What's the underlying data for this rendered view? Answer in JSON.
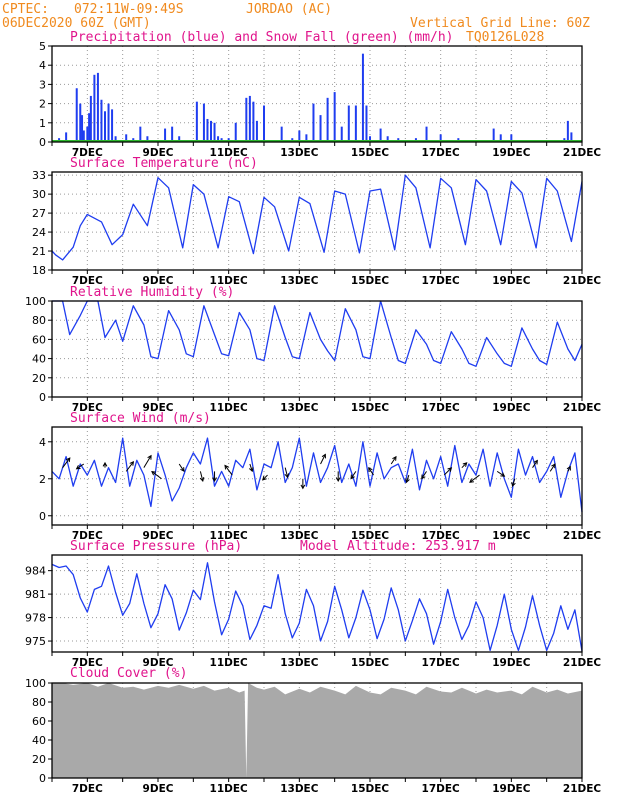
{
  "header": {
    "source_label": "CPTEC:",
    "station_coords": "072:11W-09:49S",
    "station_name": "JORDAO (AC)",
    "run_time": "06DEC2020 60Z (GMT)",
    "grid_note": "Vertical Grid Line: 60Z",
    "model_code": "TQ0126L028"
  },
  "colors": {
    "header": "#f08a1e",
    "title": "#e0148c",
    "series": "#1f3df0",
    "snow": "#2eb82e",
    "cloud": "#a9a9a9",
    "grid": "#9a9a9a"
  },
  "x_axis": {
    "start_day": 6,
    "end_day": 21,
    "tick_labels": [
      "7DEC",
      "9DEC",
      "11DEC",
      "13DEC",
      "15DEC",
      "17DEC",
      "19DEC",
      "21DEC"
    ]
  },
  "chart_data": [
    {
      "id": "precip",
      "type": "bar",
      "title": "Precipitation (blue) and Snow Fall (green) (mm/h)",
      "yticks": [
        0,
        1,
        2,
        3,
        4,
        5
      ],
      "ylim": [
        0,
        5
      ],
      "series": [
        {
          "name": "Precipitation",
          "x": [
            6.2,
            6.4,
            6.7,
            6.8,
            6.85,
            6.9,
            7.0,
            7.05,
            7.1,
            7.2,
            7.3,
            7.4,
            7.5,
            7.6,
            7.7,
            7.8,
            8.1,
            8.3,
            8.5,
            8.7,
            9.0,
            9.2,
            9.4,
            9.6,
            10.0,
            10.1,
            10.3,
            10.4,
            10.5,
            10.6,
            10.7,
            10.8,
            11.0,
            11.2,
            11.5,
            11.6,
            11.7,
            11.8,
            12.0,
            12.5,
            12.8,
            13.0,
            13.2,
            13.4,
            13.6,
            13.8,
            14.0,
            14.2,
            14.4,
            14.6,
            14.8,
            14.9,
            15.0,
            15.3,
            15.5,
            15.8,
            16.3,
            16.6,
            17.0,
            17.5,
            18.5,
            18.7,
            19.0,
            20.5,
            20.6,
            20.7
          ],
          "values": [
            0.2,
            0.5,
            2.8,
            2.0,
            1.4,
            0.6,
            0.8,
            1.5,
            2.4,
            3.5,
            3.6,
            2.2,
            1.6,
            2.0,
            1.7,
            0.3,
            0.4,
            0.2,
            0.8,
            0.3,
            0.1,
            0.7,
            0.8,
            0.3,
            0.1,
            2.1,
            2.0,
            1.2,
            1.1,
            1.0,
            0.3,
            0.2,
            0.2,
            1.0,
            2.3,
            2.4,
            2.1,
            1.1,
            1.9,
            0.8,
            0.2,
            0.6,
            0.4,
            2.0,
            1.4,
            2.3,
            2.6,
            0.8,
            1.9,
            1.9,
            4.6,
            1.9,
            0.3,
            0.7,
            0.3,
            0.2,
            0.2,
            0.8,
            0.4,
            0.2,
            0.7,
            0.4,
            0.4,
            0.2,
            1.1,
            0.5
          ]
        },
        {
          "name": "Snow Fall",
          "x": [
            6,
            21
          ],
          "values": [
            0,
            0
          ]
        }
      ]
    },
    {
      "id": "temp",
      "type": "line",
      "title": "Surface Temperature (nC)",
      "yticks": [
        18,
        21,
        24,
        27,
        30,
        33
      ],
      "ylim": [
        18,
        33.5
      ],
      "series": [
        {
          "name": "Temperature",
          "x": [
            6.0,
            6.1,
            6.3,
            6.6,
            6.8,
            7.0,
            7.4,
            7.7,
            8.0,
            8.3,
            8.7,
            9.0,
            9.3,
            9.7,
            10.0,
            10.3,
            10.7,
            11.0,
            11.3,
            11.7,
            12.0,
            12.3,
            12.7,
            13.0,
            13.3,
            13.7,
            14.0,
            14.3,
            14.7,
            15.0,
            15.3,
            15.7,
            16.0,
            16.3,
            16.7,
            17.0,
            17.3,
            17.7,
            18.0,
            18.3,
            18.7,
            19.0,
            19.3,
            19.7,
            20.0,
            20.3,
            20.7,
            21.0
          ],
          "values": [
            21.0,
            20.4,
            19.6,
            21.6,
            25.0,
            26.8,
            25.6,
            22.0,
            23.6,
            28.4,
            25.0,
            32.6,
            31.0,
            21.5,
            31.5,
            30.0,
            21.5,
            29.6,
            28.8,
            20.6,
            29.5,
            28.0,
            21.0,
            29.5,
            28.5,
            20.8,
            30.5,
            30.0,
            20.7,
            30.5,
            30.8,
            21.2,
            33.0,
            31.0,
            21.5,
            32.5,
            31.0,
            22.0,
            32.3,
            30.5,
            22.0,
            32.0,
            30.2,
            21.5,
            32.5,
            30.5,
            22.5,
            32.0
          ]
        }
      ]
    },
    {
      "id": "rh",
      "type": "line",
      "title": "Relative Humidity (%)",
      "yticks": [
        0,
        20,
        40,
        60,
        80,
        100
      ],
      "ylim": [
        0,
        100
      ],
      "series": [
        {
          "name": "Relative Humidity",
          "x": [
            6.0,
            6.3,
            6.5,
            6.8,
            7.0,
            7.3,
            7.5,
            7.8,
            8.0,
            8.3,
            8.6,
            8.8,
            9.0,
            9.3,
            9.6,
            9.8,
            10.0,
            10.3,
            10.6,
            10.8,
            11.0,
            11.3,
            11.6,
            11.8,
            12.0,
            12.3,
            12.6,
            12.8,
            13.0,
            13.3,
            13.6,
            13.8,
            14.0,
            14.3,
            14.6,
            14.8,
            15.0,
            15.3,
            15.6,
            15.8,
            16.0,
            16.3,
            16.6,
            16.8,
            17.0,
            17.3,
            17.6,
            17.8,
            18.0,
            18.3,
            18.6,
            18.8,
            19.0,
            19.3,
            19.6,
            19.8,
            20.0,
            20.3,
            20.6,
            20.8,
            21.0
          ],
          "values": [
            100,
            100,
            65,
            85,
            100,
            100,
            62,
            80,
            58,
            95,
            75,
            42,
            40,
            90,
            70,
            45,
            42,
            95,
            65,
            45,
            43,
            88,
            70,
            40,
            38,
            95,
            62,
            42,
            40,
            88,
            60,
            48,
            38,
            92,
            70,
            42,
            40,
            100,
            62,
            38,
            35,
            70,
            55,
            38,
            35,
            68,
            50,
            35,
            32,
            62,
            45,
            35,
            32,
            72,
            50,
            38,
            34,
            78,
            50,
            38,
            55
          ]
        }
      ]
    },
    {
      "id": "wind",
      "type": "line",
      "title": "Surface Wind (m/s)",
      "yticks": [
        0,
        2,
        4
      ],
      "ylim": [
        -0.5,
        4.8
      ],
      "series": [
        {
          "name": "Wind Speed",
          "x": [
            6.0,
            6.2,
            6.4,
            6.6,
            6.8,
            7.0,
            7.2,
            7.4,
            7.6,
            7.8,
            8.0,
            8.2,
            8.4,
            8.6,
            8.8,
            9.0,
            9.2,
            9.4,
            9.6,
            9.8,
            10.0,
            10.2,
            10.4,
            10.6,
            10.8,
            11.0,
            11.2,
            11.4,
            11.6,
            11.8,
            12.0,
            12.2,
            12.4,
            12.6,
            12.8,
            13.0,
            13.2,
            13.4,
            13.6,
            13.8,
            14.0,
            14.2,
            14.4,
            14.6,
            14.8,
            15.0,
            15.2,
            15.4,
            15.6,
            15.8,
            16.0,
            16.2,
            16.4,
            16.6,
            16.8,
            17.0,
            17.2,
            17.4,
            17.6,
            17.8,
            18.0,
            18.2,
            18.4,
            18.6,
            18.8,
            19.0,
            19.2,
            19.4,
            19.6,
            19.8,
            20.0,
            20.2,
            20.4,
            20.6,
            20.8,
            21.0
          ],
          "values": [
            2.4,
            2.0,
            3.2,
            1.6,
            2.8,
            2.2,
            3.0,
            1.6,
            2.6,
            1.8,
            4.2,
            1.6,
            3.0,
            2.2,
            0.5,
            3.4,
            2.2,
            0.8,
            1.5,
            2.6,
            3.4,
            2.8,
            4.2,
            1.6,
            2.4,
            1.6,
            3.0,
            2.6,
            3.6,
            1.4,
            2.8,
            2.6,
            4.0,
            1.8,
            2.6,
            4.2,
            1.6,
            3.4,
            1.8,
            2.6,
            3.8,
            1.8,
            2.8,
            1.6,
            4.0,
            1.6,
            3.4,
            2.0,
            2.6,
            2.8,
            1.8,
            3.6,
            1.4,
            3.0,
            2.0,
            3.2,
            1.6,
            3.8,
            1.8,
            2.8,
            2.2,
            3.6,
            1.6,
            3.4,
            2.0,
            1.0,
            3.6,
            2.2,
            3.2,
            1.8,
            2.4,
            3.2,
            1.0,
            2.4,
            3.4,
            0.2
          ]
        }
      ],
      "arrows": {
        "x": [
          6.3,
          6.9,
          7.5,
          8.1,
          8.6,
          9.1,
          9.6,
          10.2,
          10.6,
          11.1,
          11.6,
          12.1,
          12.6,
          13.1,
          13.6,
          14.1,
          14.6,
          15.1,
          15.6,
          16.1,
          16.6,
          17.1,
          17.6,
          18.1,
          18.6,
          19.1,
          19.6,
          20.1,
          20.6
        ],
        "y": [
          2.6,
          2.8,
          2.6,
          2.4,
          2.6,
          2.0,
          2.8,
          2.4,
          2.4,
          2.2,
          2.8,
          2.2,
          2.6,
          2.0,
          2.8,
          2.4,
          2.4,
          2.2,
          2.8,
          2.2,
          2.4,
          2.2,
          2.6,
          2.2,
          2.4,
          2.0,
          2.6,
          2.4,
          2.4
        ],
        "u": [
          0.6,
          -0.6,
          0.0,
          0.6,
          0.6,
          -0.8,
          0.4,
          0.2,
          0.0,
          -0.6,
          0.2,
          -0.4,
          0.2,
          0.0,
          0.4,
          0.0,
          -0.4,
          -0.4,
          0.4,
          -0.2,
          -0.4,
          0.6,
          0.4,
          -0.8,
          0.6,
          -0.2,
          0.4,
          0.4,
          0.2
        ],
        "v": [
          0.8,
          -0.4,
          0.4,
          0.8,
          1.0,
          0.6,
          -0.6,
          -0.8,
          -0.8,
          0.8,
          -0.6,
          -0.4,
          -0.8,
          -0.8,
          0.8,
          -0.8,
          -0.6,
          0.6,
          0.6,
          -0.6,
          -0.6,
          0.6,
          0.4,
          -0.6,
          -0.4,
          -0.6,
          0.6,
          0.6,
          0.4
        ]
      }
    },
    {
      "id": "pressure",
      "type": "line",
      "title": "Surface Pressure (hPa)",
      "annotation": "Model Altitude: 253.917 m",
      "yticks": [
        975,
        978,
        981,
        984
      ],
      "ylim": [
        973.6,
        986
      ],
      "series": [
        {
          "name": "Surface Pressure",
          "x": [
            6.0,
            6.2,
            6.4,
            6.6,
            6.8,
            7.0,
            7.2,
            7.4,
            7.6,
            7.8,
            8.0,
            8.2,
            8.4,
            8.6,
            8.8,
            9.0,
            9.2,
            9.4,
            9.6,
            9.8,
            10.0,
            10.2,
            10.4,
            10.6,
            10.8,
            11.0,
            11.2,
            11.4,
            11.6,
            11.8,
            12.0,
            12.2,
            12.4,
            12.6,
            12.8,
            13.0,
            13.2,
            13.4,
            13.6,
            13.8,
            14.0,
            14.2,
            14.4,
            14.6,
            14.8,
            15.0,
            15.2,
            15.4,
            15.6,
            15.8,
            16.0,
            16.2,
            16.4,
            16.6,
            16.8,
            17.0,
            17.2,
            17.4,
            17.6,
            17.8,
            18.0,
            18.2,
            18.4,
            18.6,
            18.8,
            19.0,
            19.2,
            19.4,
            19.6,
            19.8,
            20.0,
            20.2,
            20.4,
            20.6,
            20.8,
            21.0
          ],
          "values": [
            984.8,
            984.4,
            984.6,
            983.5,
            980.5,
            978.7,
            981.6,
            982.0,
            984.6,
            981.2,
            978.3,
            979.8,
            983.6,
            979.8,
            976.7,
            978.5,
            982.2,
            980.4,
            976.4,
            978.6,
            981.5,
            980.3,
            985.0,
            980.0,
            975.8,
            977.8,
            981.4,
            979.5,
            975.2,
            977.0,
            979.5,
            979.2,
            983.5,
            978.5,
            975.4,
            977.3,
            981.6,
            979.5,
            975.0,
            977.5,
            982.0,
            979.0,
            975.4,
            978.0,
            981.5,
            979.0,
            975.3,
            977.8,
            981.8,
            979.0,
            975.0,
            977.6,
            980.4,
            978.5,
            974.6,
            977.5,
            981.6,
            978.0,
            975.2,
            977.0,
            980.0,
            978.0,
            973.8,
            977.0,
            981.0,
            976.5,
            973.8,
            976.8,
            980.8,
            977.0,
            973.8,
            976.0,
            979.5,
            976.5,
            979.0,
            973.7
          ]
        }
      ]
    },
    {
      "id": "cloud",
      "type": "area",
      "title": "Cloud Cover (%)",
      "yticks": [
        0,
        20,
        40,
        60,
        80,
        100
      ],
      "ylim": [
        0,
        100
      ],
      "series": [
        {
          "name": "Cloud Cover",
          "x": [
            6.0,
            6.3,
            6.6,
            7.0,
            7.3,
            7.6,
            8.0,
            8.3,
            8.6,
            9.0,
            9.3,
            9.6,
            10.0,
            10.3,
            10.6,
            11.0,
            11.3,
            11.45,
            11.5,
            11.55,
            11.8,
            12.0,
            12.3,
            12.6,
            13.0,
            13.3,
            13.6,
            14.0,
            14.3,
            14.6,
            15.0,
            15.3,
            15.6,
            16.0,
            16.3,
            16.6,
            17.0,
            17.3,
            17.6,
            18.0,
            18.3,
            18.6,
            19.0,
            19.3,
            19.6,
            20.0,
            20.3,
            20.6,
            21.0
          ],
          "values": [
            100,
            100,
            98,
            100,
            96,
            100,
            95,
            96,
            93,
            97,
            95,
            98,
            94,
            97,
            92,
            95,
            90,
            92,
            0,
            100,
            95,
            93,
            96,
            88,
            94,
            90,
            96,
            92,
            88,
            97,
            90,
            88,
            95,
            92,
            88,
            96,
            91,
            90,
            95,
            89,
            93,
            90,
            92,
            88,
            96,
            90,
            93,
            89,
            92
          ]
        }
      ]
    }
  ]
}
